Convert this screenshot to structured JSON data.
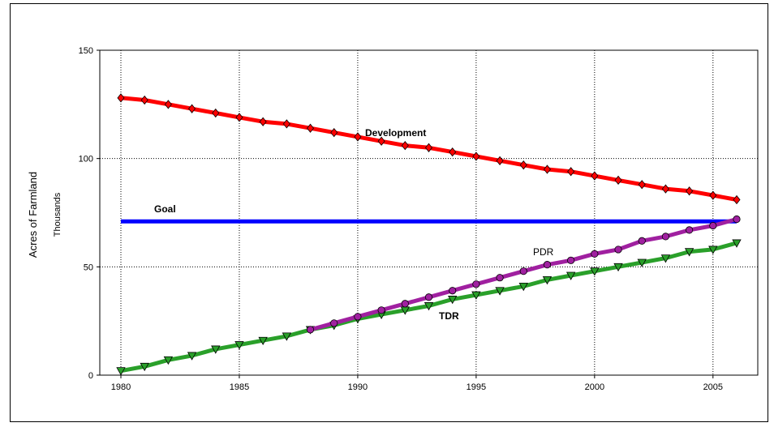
{
  "chart_data": {
    "type": "line",
    "ylabel": "Acres of Farmland",
    "yunit": "Thousands",
    "xlim": [
      1980,
      2006
    ],
    "ylim": [
      0,
      150
    ],
    "xticks": [
      "1980",
      "1985",
      "1990",
      "1995",
      "2000",
      "2005"
    ],
    "yticks": [
      "0",
      "50",
      "100",
      "150"
    ],
    "grid": true,
    "annotations": {
      "development": "Development",
      "goal": "Goal",
      "pdr": "PDR",
      "tdr": "TDR"
    },
    "series": [
      {
        "name": "Development",
        "color": "#ff0000",
        "marker": "diamond",
        "x": [
          1980,
          1981,
          1982,
          1983,
          1984,
          1985,
          1986,
          1987,
          1988,
          1989,
          1990,
          1991,
          1992,
          1993,
          1994,
          1995,
          1996,
          1997,
          1998,
          1999,
          2000,
          2001,
          2002,
          2003,
          2004,
          2005,
          2006
        ],
        "values": [
          128,
          127,
          125,
          123,
          121,
          119,
          117,
          116,
          114,
          112,
          110,
          108,
          106,
          105,
          103,
          101,
          99,
          97,
          95,
          94,
          92,
          90,
          88,
          86,
          85,
          83,
          81
        ]
      },
      {
        "name": "Goal",
        "color": "#0000ff",
        "marker": "none",
        "x": [
          1980,
          2006
        ],
        "values": [
          71,
          71
        ]
      },
      {
        "name": "PDR",
        "color": "#a020a0",
        "marker": "circle",
        "x": [
          1988,
          1989,
          1990,
          1991,
          1992,
          1993,
          1994,
          1995,
          1996,
          1997,
          1998,
          1999,
          2000,
          2001,
          2002,
          2003,
          2004,
          2005,
          2006
        ],
        "values": [
          21,
          24,
          27,
          30,
          33,
          36,
          39,
          42,
          45,
          48,
          51,
          53,
          56,
          58,
          62,
          64,
          67,
          69,
          72
        ]
      },
      {
        "name": "TDR",
        "color": "#2aa02a",
        "marker": "triangle-down",
        "x": [
          1980,
          1981,
          1982,
          1983,
          1984,
          1985,
          1986,
          1987,
          1988,
          1989,
          1990,
          1991,
          1992,
          1993,
          1994,
          1995,
          1996,
          1997,
          1998,
          1999,
          2000,
          2001,
          2002,
          2003,
          2004,
          2005,
          2006
        ],
        "values": [
          2,
          4,
          7,
          9,
          12,
          14,
          16,
          18,
          21,
          23,
          26,
          28,
          30,
          32,
          35,
          37,
          39,
          41,
          44,
          46,
          48,
          50,
          52,
          54,
          57,
          58,
          61
        ]
      }
    ]
  }
}
